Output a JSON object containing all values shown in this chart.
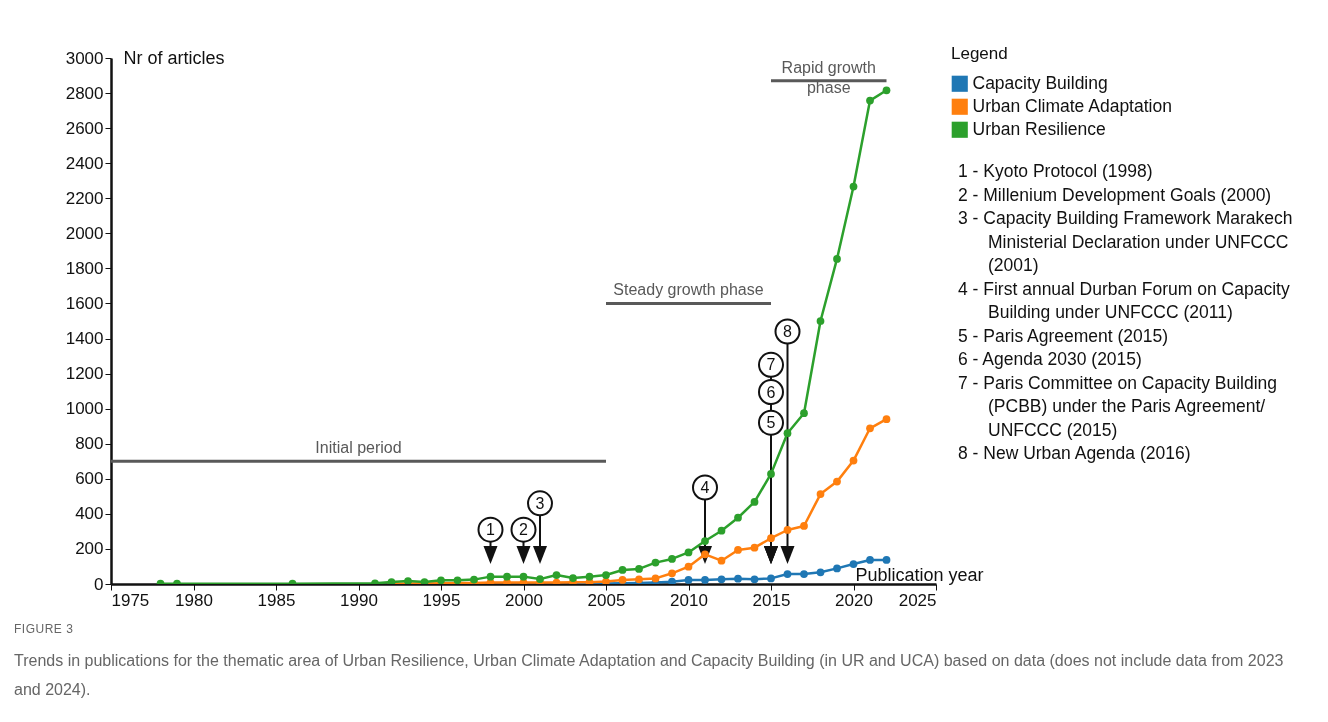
{
  "chart_data": {
    "type": "line",
    "title": "FIGURE 3",
    "subtitle": "Trends in publications for the thematic area of Urban Resilience, Urban Climate Adaptation and Capacity Building (in UR and UCA) based on data (does not include data from 2023 and 2024).",
    "xlabel": "Publication year",
    "ylabel": "Nr of articles",
    "legend_title": "Legend",
    "legend": "top right",
    "marker": "circle",
    "line_style": "solid",
    "grid": false,
    "xlim": [
      1975,
      2025
    ],
    "xticks": [
      1975,
      1980,
      1985,
      1990,
      1995,
      2000,
      2005,
      2010,
      2015,
      2020,
      2025
    ],
    "ylim": [
      0,
      3000
    ],
    "yticks": [
      0,
      200,
      400,
      600,
      800,
      1000,
      1200,
      1400,
      1600,
      1800,
      2000,
      2200,
      2400,
      2600,
      2800,
      3000
    ],
    "series": [
      {
        "name": "Capacity Building",
        "color": "#1f77b4",
        "x": [
          2003,
          2004,
          2005,
          2006,
          2007,
          2008,
          2009,
          2010,
          2011,
          2012,
          2013,
          2014,
          2015,
          2016,
          2017,
          2018,
          2019,
          2020,
          2021,
          2022
        ],
        "values": [
          3,
          3,
          3,
          4,
          5,
          8,
          13,
          23,
          23,
          27,
          30,
          27,
          32,
          57,
          57,
          67,
          89,
          114,
          137,
          137
        ]
      },
      {
        "name": "Urban Climate Adaptation",
        "color": "#ff7f0e",
        "x": [
          1992,
          1993,
          1994,
          1995,
          1996,
          1997,
          1998,
          1999,
          2000,
          2001,
          2002,
          2003,
          2004,
          2005,
          2006,
          2007,
          2008,
          2009,
          2010,
          2011,
          2012,
          2013,
          2014,
          2015,
          2016,
          2017,
          2018,
          2019,
          2020,
          2021,
          2022
        ],
        "values": [
          2,
          3,
          3,
          4,
          5,
          6,
          8,
          8,
          8,
          8,
          8,
          10,
          10,
          14,
          23,
          27,
          32,
          61,
          99,
          169,
          133,
          194,
          207,
          261,
          308,
          331,
          513,
          584,
          704,
          888,
          940
        ]
      },
      {
        "name": "Urban Resilience",
        "color": "#2ca02c",
        "x": [
          1978,
          1979,
          1986,
          1991,
          1992,
          1993,
          1994,
          1995,
          1996,
          1997,
          1998,
          1999,
          2000,
          2001,
          2002,
          2003,
          2004,
          2005,
          2006,
          2007,
          2008,
          2009,
          2010,
          2011,
          2012,
          2013,
          2014,
          2015,
          2016,
          2017,
          2018,
          2019,
          2020,
          2021,
          2022
        ],
        "values": [
          2,
          2,
          2,
          4,
          11,
          17,
          11,
          21,
          21,
          25,
          42,
          42,
          42,
          28,
          51,
          34,
          42,
          51,
          80,
          86,
          122,
          143,
          180,
          245,
          304,
          378,
          468,
          628,
          860,
          974,
          1500,
          1854,
          2267,
          2757,
          2816
        ]
      },
      {
        "name": "Initial period",
        "color": "#595959",
        "marker": "none",
        "x": [
          1975,
          2005
        ],
        "values": [
          700,
          700
        ]
      },
      {
        "name": "Steady growth phase",
        "color": "#595959",
        "marker": "none",
        "x": [
          2005,
          2015
        ],
        "values": [
          1600,
          1600
        ]
      },
      {
        "name": "Rapid growth phase",
        "color": "#595959",
        "marker": "none",
        "x": [
          2015,
          2022
        ],
        "values": [
          2870,
          2870
        ]
      }
    ],
    "annotations": [
      {
        "text": "1",
        "x": 1998,
        "y": 310
      },
      {
        "text": "2",
        "x": 2000,
        "y": 310
      },
      {
        "text": "3",
        "x": 2001,
        "y": 460
      },
      {
        "text": "4",
        "x": 2011,
        "y": 550
      },
      {
        "text": "5",
        "x": 2015,
        "y": 920
      },
      {
        "text": "6",
        "x": 2015,
        "y": 1095
      },
      {
        "text": "7",
        "x": 2015,
        "y": 1250
      },
      {
        "text": "8",
        "x": 2016,
        "y": 1440
      },
      "1 - Kyoto Protocol (1998)",
      "2 - Millenium Development Goals (2000)",
      "3 - Capacity Building  Framework Marakech Ministerial Declaration under UNFCCC (2001)",
      "4 - First annual Durban Forum on Capacity Building under UNFCCC (2011)",
      "5 - Paris Agreement (2015)",
      "6 - Agenda 2030 (2015)",
      "7 - Paris Committee on Capacity Building (PCBB) under the Paris Agreement/ UNFCCC (2015)",
      "8 - New Urban Agenda (2016)"
    ]
  }
}
